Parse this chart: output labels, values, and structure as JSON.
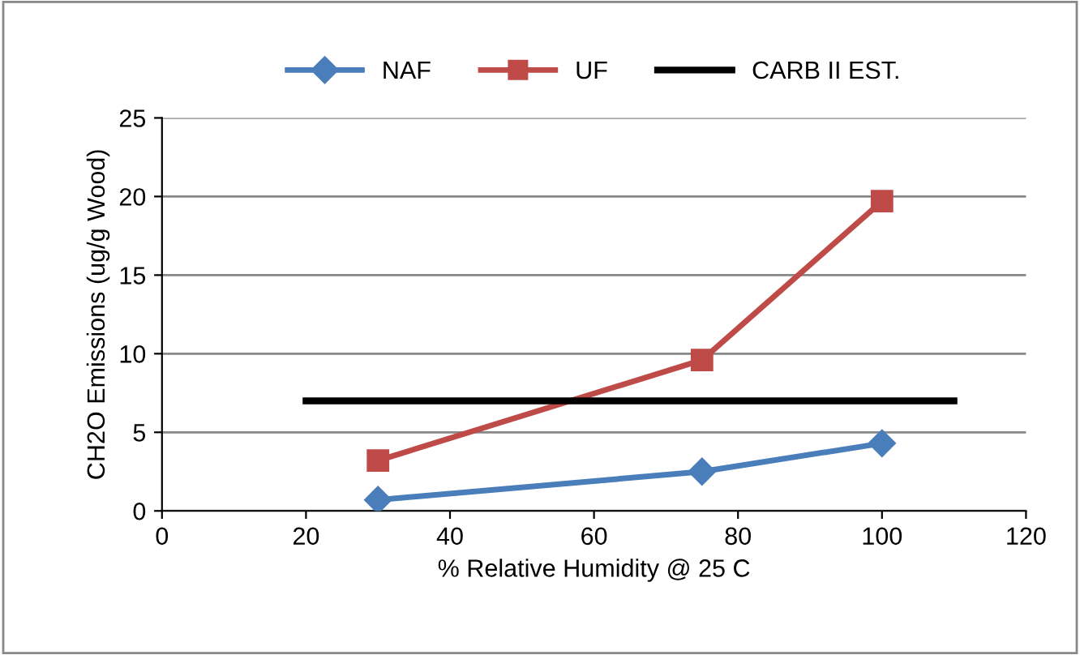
{
  "chart_data": {
    "type": "line",
    "xlabel": "% Relative Humidity @ 25 C",
    "ylabel": "CH2O Emissions (ug/g Wood)",
    "xlim": [
      0,
      120
    ],
    "xticks": [
      0,
      20,
      40,
      60,
      80,
      100,
      120
    ],
    "ylim": [
      0,
      25
    ],
    "yticks": [
      0,
      5,
      10,
      15,
      20,
      25
    ],
    "grid": "y",
    "legend": "top",
    "series": [
      {
        "name": "NAF",
        "color": "#4a7ebb",
        "x": [
          30,
          75,
          100
        ],
        "values": [
          0.7,
          2.5,
          4.3
        ],
        "marker": "diamond"
      },
      {
        "name": "UF",
        "color": "#be4b48",
        "x": [
          30,
          75,
          100
        ],
        "values": [
          3.2,
          9.6,
          19.7
        ],
        "marker": "square"
      },
      {
        "name": "CARB II EST.",
        "color": "#000000",
        "x": [
          20,
          110
        ],
        "values": [
          7,
          7
        ],
        "marker": "none"
      }
    ]
  }
}
